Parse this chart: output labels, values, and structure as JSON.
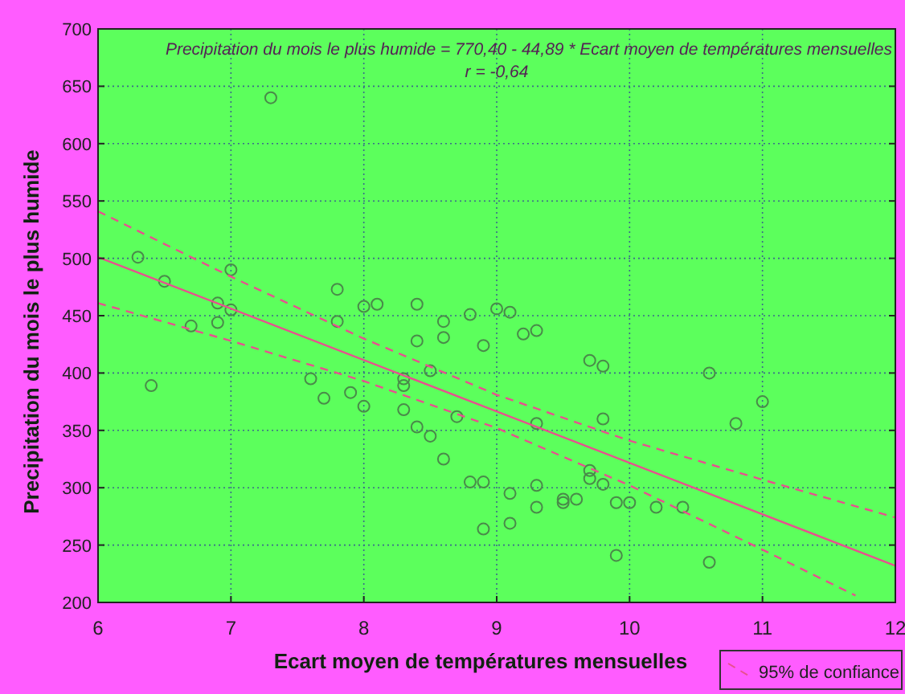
{
  "chart_data": {
    "type": "scatter",
    "title": "Precipitation du mois le plus humide = 770,40 - 44,89  * Ecart moyen de températures mensuelles",
    "subtitle": "r = -0,64",
    "xlabel": "Ecart moyen de températures mensuelles",
    "ylabel": "Precipitation du mois le plus humide",
    "xlim": [
      6,
      12
    ],
    "ylim": [
      200,
      700
    ],
    "xticks": [
      6,
      7,
      8,
      9,
      10,
      11,
      12
    ],
    "yticks": [
      200,
      250,
      300,
      350,
      400,
      450,
      500,
      550,
      600,
      650,
      700
    ],
    "grid": true,
    "legend": "bottom right",
    "series": [
      {
        "marker": "circle",
        "color": "#4a8a4a",
        "x": [
          6.3,
          6.4,
          6.5,
          6.7,
          6.9,
          6.9,
          7.0,
          7.0,
          7.3,
          7.8,
          7.8,
          8.0,
          8.1,
          8.4,
          8.6,
          8.6,
          8.4,
          8.8,
          8.9,
          9.0,
          9.1,
          7.6,
          7.7,
          7.9,
          8.0,
          8.3,
          8.3,
          8.3,
          8.5,
          8.4,
          8.5,
          8.7,
          8.6,
          8.8,
          8.9,
          8.9,
          9.1,
          9.1,
          9.2,
          9.3,
          9.7,
          9.8,
          10.6,
          11.0,
          9.3,
          9.8,
          10.8,
          9.3,
          9.3,
          9.5,
          9.5,
          9.6,
          9.7,
          9.7,
          9.8,
          9.9,
          10.0,
          10.2,
          10.4,
          9.9,
          10.6
        ],
        "values": [
          501,
          389,
          480,
          441,
          461,
          444,
          490,
          455,
          640,
          473,
          445,
          458,
          460,
          460,
          445,
          431,
          428,
          451,
          424,
          456,
          453,
          395,
          378,
          383,
          371,
          395,
          389,
          368,
          402,
          353,
          345,
          362,
          325,
          305,
          305,
          264,
          295,
          269,
          434,
          437,
          411,
          406,
          400,
          375,
          356,
          360,
          356,
          302,
          283,
          290,
          287,
          290,
          315,
          308,
          303,
          287,
          287,
          283,
          283,
          241,
          235
        ]
      },
      {
        "type": "line",
        "color": "#e8508f",
        "line_style": "solid",
        "marker": "none",
        "x": [
          6,
          12
        ],
        "values": [
          501,
          232
        ]
      },
      {
        "type": "line",
        "name": "95% de confiance",
        "color": "#e8508f",
        "line_style": "dashed",
        "marker": "none",
        "x": [
          6,
          7,
          8,
          9,
          10,
          11,
          12
        ],
        "values": [
          541,
          484,
          430,
          381,
          341,
          307,
          274
        ]
      },
      {
        "type": "line",
        "color": "#e8508f",
        "line_style": "dashed",
        "marker": "none",
        "x": [
          6,
          7,
          8,
          9,
          10,
          11,
          11.7
        ],
        "values": [
          461,
          428,
          393,
          352,
          302,
          246,
          206
        ]
      }
    ]
  }
}
